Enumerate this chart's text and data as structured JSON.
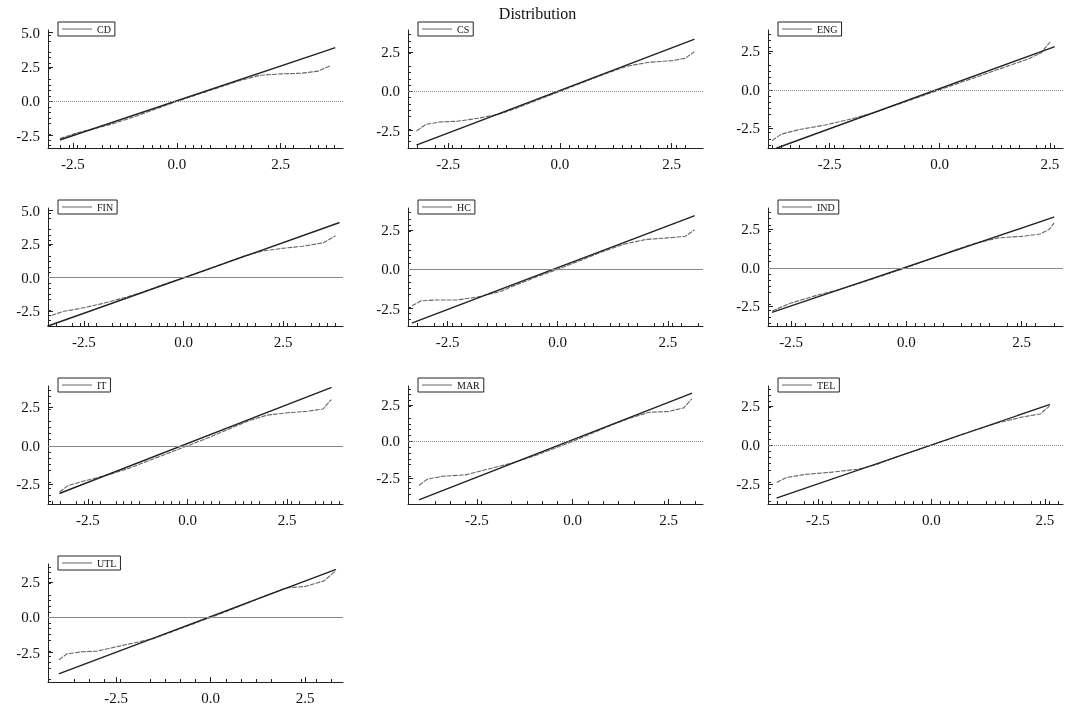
{
  "chart_data": [
    {
      "type": "line",
      "legend": "top left",
      "marker": "none",
      "grid": false,
      "xlim": [
        -3.1,
        4.0
      ],
      "ylim": [
        -3.4,
        5.2
      ],
      "xticks": [
        {
          "value": -2.5,
          "label": "-2.5"
        },
        {
          "value": 0,
          "label": "0.0"
        },
        {
          "value": 2.5,
          "label": "2.5"
        }
      ],
      "yticks": [
        {
          "value": -2.5,
          "label": "-2.5"
        },
        {
          "value": 0,
          "label": "0.0"
        },
        {
          "value": 2.5,
          "label": "2.5"
        },
        {
          "value": 5,
          "label": "5.0"
        }
      ],
      "ref_lines": [
        {
          "axis": "y",
          "value": 0,
          "color": "#888888",
          "line_style": "dotted"
        }
      ],
      "series": [
        {
          "name": "CD",
          "color": "#666666",
          "line_style": "dashed",
          "x": [
            -2.8,
            -2.4,
            -2,
            -1.5,
            -1,
            -0.5,
            0,
            0.5,
            1,
            1.5,
            2,
            2.5,
            3,
            3.4,
            3.7
          ],
          "values": [
            -2.7,
            -2.3,
            -2.0,
            -1.6,
            -1.1,
            -0.55,
            0,
            0.5,
            1.0,
            1.5,
            1.9,
            2.0,
            2.05,
            2.2,
            2.6
          ]
        },
        {
          "color": "#222222",
          "line_style": "solid",
          "x": [
            -2.8,
            3.8
          ],
          "values": [
            -2.8,
            3.9
          ]
        }
      ]
    },
    {
      "type": "line",
      "title": "Distribution",
      "legend": "top left",
      "marker": "none",
      "grid": false,
      "xlim": [
        -3.4,
        3.2
      ],
      "ylim": [
        -3.6,
        3.9
      ],
      "xticks": [
        {
          "value": -2.5,
          "label": "-2.5"
        },
        {
          "value": 0,
          "label": "0.0"
        },
        {
          "value": 2.5,
          "label": "2.5"
        }
      ],
      "yticks": [
        {
          "value": -2.5,
          "label": "-2.5"
        },
        {
          "value": 0,
          "label": "0.0"
        },
        {
          "value": 2.5,
          "label": "2.5"
        }
      ],
      "ref_lines": [
        {
          "axis": "y",
          "value": 0,
          "color": "#888888",
          "line_style": "dotted"
        }
      ],
      "series": [
        {
          "name": "CS",
          "color": "#666666",
          "line_style": "dashed",
          "x": [
            -3.2,
            -3.0,
            -2.7,
            -2.3,
            -1.8,
            -1.3,
            -1,
            -0.5,
            0,
            0.5,
            1,
            1.5,
            2,
            2.5,
            2.8,
            3.0
          ],
          "values": [
            -2.5,
            -2.1,
            -1.95,
            -1.9,
            -1.7,
            -1.4,
            -1.1,
            -0.55,
            0,
            0.55,
            1.1,
            1.6,
            1.85,
            1.95,
            2.1,
            2.5
          ]
        },
        {
          "color": "#222222",
          "line_style": "solid",
          "x": [
            -3.2,
            3.0
          ],
          "values": [
            -3.4,
            3.3
          ]
        }
      ]
    },
    {
      "type": "line",
      "legend": "top left",
      "marker": "none",
      "grid": false,
      "xlim": [
        -3.9,
        2.8
      ],
      "ylim": [
        -3.8,
        3.9
      ],
      "xticks": [
        {
          "value": -2.5,
          "label": "-2.5"
        },
        {
          "value": 0,
          "label": "0.0"
        },
        {
          "value": 2.5,
          "label": "2.5"
        }
      ],
      "yticks": [
        {
          "value": -2.5,
          "label": "-2.5"
        },
        {
          "value": 0,
          "label": "0.0"
        },
        {
          "value": 2.5,
          "label": "2.5"
        }
      ],
      "ref_lines": [
        {
          "axis": "y",
          "value": 0,
          "color": "#888888",
          "line_style": "dotted"
        }
      ],
      "series": [
        {
          "name": "ENG",
          "color": "#666666",
          "line_style": "dashed",
          "x": [
            -3.8,
            -3.6,
            -3.2,
            -2.6,
            -2,
            -1.5,
            -1,
            -0.5,
            0,
            0.5,
            1,
            1.5,
            2,
            2.3,
            2.5
          ],
          "values": [
            -3.3,
            -2.9,
            -2.6,
            -2.3,
            -1.9,
            -1.5,
            -1.0,
            -0.5,
            0,
            0.5,
            1.0,
            1.5,
            2.0,
            2.4,
            3.1
          ]
        },
        {
          "color": "#222222",
          "line_style": "solid",
          "x": [
            -3.7,
            2.6
          ],
          "values": [
            -3.8,
            2.8
          ]
        }
      ]
    },
    {
      "type": "line",
      "legend": "top left",
      "marker": "none",
      "grid": false,
      "xlim": [
        -3.4,
        4.0
      ],
      "ylim": [
        -3.6,
        5.2
      ],
      "xticks": [
        {
          "value": -2.5,
          "label": "-2.5"
        },
        {
          "value": 0,
          "label": "0.0"
        },
        {
          "value": 2.5,
          "label": "2.5"
        }
      ],
      "yticks": [
        {
          "value": -2.5,
          "label": "-2.5"
        },
        {
          "value": 0,
          "label": "0.0"
        },
        {
          "value": 2.5,
          "label": "2.5"
        },
        {
          "value": 5,
          "label": "5.0"
        }
      ],
      "ref_lines": [
        {
          "axis": "y",
          "value": 0,
          "color": "#888888",
          "line_style": "solid"
        }
      ],
      "series": [
        {
          "name": "FIN",
          "color": "#666666",
          "line_style": "dashed",
          "x": [
            -3.3,
            -3,
            -2.6,
            -2,
            -1.5,
            -1,
            -0.5,
            0,
            0.5,
            1,
            1.5,
            2,
            2.5,
            3,
            3.5,
            3.8
          ],
          "values": [
            -2.8,
            -2.5,
            -2.3,
            -1.9,
            -1.5,
            -1.05,
            -0.5,
            0,
            0.5,
            1.05,
            1.6,
            2.0,
            2.2,
            2.35,
            2.6,
            3.1
          ]
        },
        {
          "color": "#222222",
          "line_style": "solid",
          "x": [
            -3.4,
            3.9
          ],
          "values": [
            -3.6,
            4.1
          ]
        }
      ]
    },
    {
      "type": "line",
      "legend": "top left",
      "marker": "none",
      "grid": false,
      "xlim": [
        -3.4,
        3.3
      ],
      "ylim": [
        -3.6,
        3.9
      ],
      "xticks": [
        {
          "value": -2.5,
          "label": "-2.5"
        },
        {
          "value": 0,
          "label": "0.0"
        },
        {
          "value": 2.5,
          "label": "2.5"
        }
      ],
      "yticks": [
        {
          "value": -2.5,
          "label": "-2.5"
        },
        {
          "value": 0,
          "label": "0.0"
        },
        {
          "value": 2.5,
          "label": "2.5"
        }
      ],
      "ref_lines": [
        {
          "axis": "y",
          "value": 0,
          "color": "#888888",
          "line_style": "solid"
        }
      ],
      "series": [
        {
          "name": "HC",
          "color": "#666666",
          "line_style": "dashed",
          "x": [
            -3.3,
            -3.1,
            -2.8,
            -2.3,
            -1.8,
            -1.3,
            -1,
            -0.5,
            0,
            0.5,
            1,
            1.5,
            2,
            2.5,
            2.9,
            3.1
          ],
          "values": [
            -2.3,
            -2.0,
            -1.95,
            -1.95,
            -1.75,
            -1.4,
            -1.05,
            -0.5,
            0,
            0.55,
            1.1,
            1.6,
            1.9,
            2.0,
            2.1,
            2.5
          ]
        },
        {
          "color": "#222222",
          "line_style": "solid",
          "x": [
            -3.3,
            3.1
          ],
          "values": [
            -3.4,
            3.4
          ]
        }
      ]
    },
    {
      "type": "line",
      "legend": "top left",
      "marker": "none",
      "grid": false,
      "xlim": [
        -3.0,
        3.4
      ],
      "ylim": [
        -3.8,
        3.9
      ],
      "xticks": [
        {
          "value": -2.5,
          "label": "-2.5"
        },
        {
          "value": 0,
          "label": "0.0"
        },
        {
          "value": 2.5,
          "label": "2.5"
        }
      ],
      "yticks": [
        {
          "value": -2.5,
          "label": "-2.5"
        },
        {
          "value": 0,
          "label": "0.0"
        },
        {
          "value": 2.5,
          "label": "2.5"
        }
      ],
      "ref_lines": [
        {
          "axis": "y",
          "value": 0,
          "color": "#888888",
          "line_style": "solid"
        }
      ],
      "series": [
        {
          "name": "IND",
          "color": "#666666",
          "line_style": "dashed",
          "x": [
            -2.9,
            -2.5,
            -2,
            -1.5,
            -1,
            -0.5,
            0,
            0.5,
            1,
            1.5,
            2,
            2.5,
            2.9,
            3.1,
            3.2
          ],
          "values": [
            -2.8,
            -2.3,
            -1.85,
            -1.45,
            -1.0,
            -0.5,
            0,
            0.55,
            1.1,
            1.6,
            1.95,
            2.05,
            2.2,
            2.5,
            2.9
          ]
        },
        {
          "color": "#222222",
          "line_style": "solid",
          "x": [
            -2.9,
            3.2
          ],
          "values": [
            -2.9,
            3.3
          ]
        }
      ]
    },
    {
      "type": "line",
      "legend": "top left",
      "marker": "none",
      "grid": false,
      "xlim": [
        -3.5,
        3.9
      ],
      "ylim": [
        -3.8,
        3.9
      ],
      "xticks": [
        {
          "value": -2.5,
          "label": "-2.5"
        },
        {
          "value": 0,
          "label": "0.0"
        },
        {
          "value": 2.5,
          "label": "2.5"
        }
      ],
      "yticks": [
        {
          "value": -2.5,
          "label": "-2.5"
        },
        {
          "value": 0,
          "label": "0.0"
        },
        {
          "value": 2.5,
          "label": "2.5"
        }
      ],
      "ref_lines": [
        {
          "axis": "y",
          "value": 0,
          "color": "#888888",
          "line_style": "solid"
        }
      ],
      "series": [
        {
          "name": "IT",
          "color": "#666666",
          "line_style": "dashed",
          "x": [
            -3.2,
            -3,
            -2.6,
            -2,
            -1.5,
            -1,
            -0.5,
            0,
            0.5,
            1,
            1.5,
            2,
            2.5,
            3,
            3.4,
            3.6
          ],
          "values": [
            -3.0,
            -2.6,
            -2.3,
            -1.9,
            -1.5,
            -1.0,
            -0.5,
            0,
            0.5,
            1.05,
            1.6,
            2.0,
            2.15,
            2.25,
            2.4,
            3.0
          ]
        },
        {
          "color": "#222222",
          "line_style": "solid",
          "x": [
            -3.2,
            3.6
          ],
          "values": [
            -3.1,
            3.8
          ]
        }
      ]
    },
    {
      "type": "line",
      "legend": "top left",
      "marker": "none",
      "grid": false,
      "xlim": [
        -4.3,
        3.4
      ],
      "ylim": [
        -4.3,
        3.8
      ],
      "xticks": [
        {
          "value": -2.5,
          "label": "-2.5"
        },
        {
          "value": 0,
          "label": "0.0"
        },
        {
          "value": 2.5,
          "label": "2.5"
        }
      ],
      "yticks": [
        {
          "value": -2.5,
          "label": "-2.5"
        },
        {
          "value": 0,
          "label": "0.0"
        },
        {
          "value": 2.5,
          "label": "2.5"
        }
      ],
      "ref_lines": [
        {
          "axis": "y",
          "value": 0,
          "color": "#888888",
          "line_style": "dotted"
        }
      ],
      "series": [
        {
          "name": "MAR",
          "color": "#666666",
          "line_style": "dashed",
          "x": [
            -4.0,
            -3.8,
            -3.4,
            -2.8,
            -2.2,
            -1.6,
            -1,
            -0.5,
            0,
            0.5,
            1,
            1.5,
            2,
            2.5,
            2.9,
            3.1
          ],
          "values": [
            -3.0,
            -2.6,
            -2.4,
            -2.3,
            -1.9,
            -1.5,
            -1.0,
            -0.5,
            0,
            0.55,
            1.1,
            1.6,
            2.0,
            2.05,
            2.3,
            2.9
          ]
        },
        {
          "color": "#222222",
          "line_style": "solid",
          "x": [
            -4.0,
            3.1
          ],
          "values": [
            -4.0,
            3.3
          ]
        }
      ]
    },
    {
      "type": "line",
      "legend": "top left",
      "marker": "none",
      "grid": false,
      "xlim": [
        -3.6,
        2.9
      ],
      "ylim": [
        -3.8,
        3.8
      ],
      "xticks": [
        {
          "value": -2.5,
          "label": "-2.5"
        },
        {
          "value": 0,
          "label": "0.0"
        },
        {
          "value": 2.5,
          "label": "2.5"
        }
      ],
      "yticks": [
        {
          "value": -2.5,
          "label": "-2.5"
        },
        {
          "value": 0,
          "label": "0.0"
        },
        {
          "value": 2.5,
          "label": "2.5"
        }
      ],
      "ref_lines": [
        {
          "axis": "y",
          "value": 0,
          "color": "#888888",
          "line_style": "dotted"
        }
      ],
      "series": [
        {
          "name": "TEL",
          "color": "#666666",
          "line_style": "dashed",
          "x": [
            -3.4,
            -3.2,
            -2.8,
            -2.2,
            -1.6,
            -1.2,
            -0.8,
            -0.4,
            0,
            0.5,
            1,
            1.5,
            2,
            2.4,
            2.6
          ],
          "values": [
            -2.4,
            -2.1,
            -1.9,
            -1.75,
            -1.55,
            -1.25,
            -0.8,
            -0.4,
            0,
            0.5,
            1.0,
            1.45,
            1.8,
            2.0,
            2.5
          ]
        },
        {
          "color": "#222222",
          "line_style": "solid",
          "x": [
            -3.4,
            2.6
          ],
          "values": [
            -3.4,
            2.6
          ]
        }
      ]
    },
    {
      "type": "line",
      "legend": "top left",
      "marker": "none",
      "grid": false,
      "xlim": [
        -4.3,
        3.5
      ],
      "ylim": [
        -4.6,
        3.8
      ],
      "xticks": [
        {
          "value": -2.5,
          "label": "-2.5"
        },
        {
          "value": 0,
          "label": "0.0"
        },
        {
          "value": 2.5,
          "label": "2.5"
        }
      ],
      "yticks": [
        {
          "value": -2.5,
          "label": "-2.5"
        },
        {
          "value": 0,
          "label": "0.0"
        },
        {
          "value": 2.5,
          "label": "2.5"
        }
      ],
      "ref_lines": [
        {
          "axis": "y",
          "value": 0,
          "color": "#888888",
          "line_style": "solid"
        }
      ],
      "series": [
        {
          "name": "UTL",
          "color": "#666666",
          "line_style": "dashed",
          "x": [
            -4.0,
            -3.8,
            -3.4,
            -3,
            -2.5,
            -2,
            -1.5,
            -1,
            -0.5,
            0,
            0.5,
            1,
            1.5,
            2,
            2.5,
            3,
            3.3
          ],
          "values": [
            -3.0,
            -2.6,
            -2.45,
            -2.4,
            -2.1,
            -1.8,
            -1.5,
            -1.0,
            -0.5,
            0,
            0.5,
            1.05,
            1.6,
            2.1,
            2.2,
            2.6,
            3.3
          ]
        },
        {
          "color": "#222222",
          "line_style": "solid",
          "x": [
            -4.0,
            3.3
          ],
          "values": [
            -4.0,
            3.4
          ]
        }
      ]
    }
  ]
}
